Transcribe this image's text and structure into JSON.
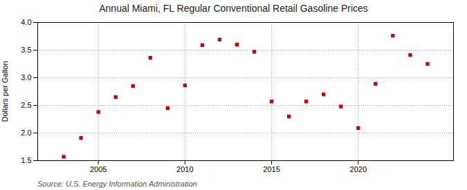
{
  "chart_data": {
    "type": "scatter",
    "title": "Annual Miami, FL Regular Conventional Retail Gasoline Prices",
    "ylabel": "Dollars per Gallon",
    "source": "Source: U.S. Energy Information Administration",
    "x": [
      2003,
      2004,
      2005,
      2006,
      2007,
      2008,
      2009,
      2010,
      2011,
      2012,
      2013,
      2014,
      2015,
      2016,
      2017,
      2018,
      2019,
      2020,
      2021,
      2022,
      2023,
      2024
    ],
    "values": [
      1.57,
      1.91,
      2.38,
      2.65,
      2.85,
      3.36,
      2.45,
      2.86,
      3.59,
      3.69,
      3.6,
      3.47,
      2.57,
      2.3,
      2.57,
      2.7,
      2.48,
      2.09,
      2.89,
      3.76,
      3.41,
      3.25
    ],
    "color": "#cc0000",
    "marker": "square",
    "xlim": [
      2001.5,
      2025.5
    ],
    "xticks": [
      2005,
      2010,
      2015,
      2020
    ],
    "ylim": [
      1.5,
      4.0
    ],
    "yticks": [
      1.5,
      {
        "value": 2.0,
        "label": "2.0"
      },
      2.5,
      {
        "value": 3.0,
        "label": "3.0"
      },
      3.5,
      {
        "value": 4.0,
        "label": "4.0"
      }
    ],
    "grid": true
  }
}
